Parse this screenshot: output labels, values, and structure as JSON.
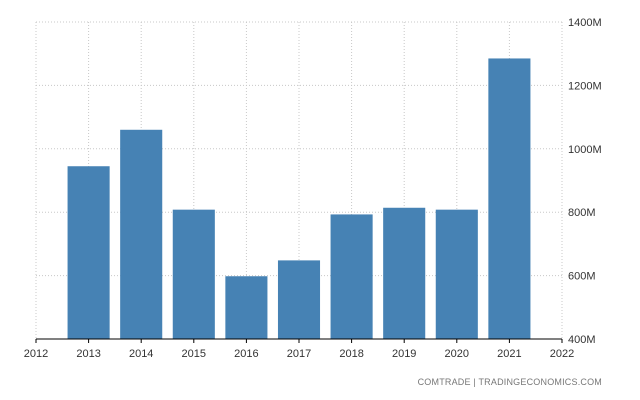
{
  "chart_data": {
    "type": "bar",
    "categories": [
      "2013",
      "2014",
      "2015",
      "2016",
      "2017",
      "2018",
      "2019",
      "2020",
      "2021"
    ],
    "values": [
      945,
      1060,
      808,
      598,
      648,
      793,
      814,
      808,
      1285
    ],
    "x_ticks": [
      "2012",
      "2013",
      "2014",
      "2015",
      "2016",
      "2017",
      "2018",
      "2019",
      "2020",
      "2021",
      "2022"
    ],
    "xlim": [
      2012,
      2022
    ],
    "y_ticks": [
      {
        "value": 400,
        "label": "400M"
      },
      {
        "value": 600,
        "label": "600M"
      },
      {
        "value": 800,
        "label": "800M"
      },
      {
        "value": 1000,
        "label": "1000M"
      },
      {
        "value": 1200,
        "label": "1200M"
      },
      {
        "value": 1400,
        "label": "1400M"
      }
    ],
    "ylim": [
      400,
      1400
    ],
    "y_axis_side": "right",
    "grid": true,
    "bar_color": "#4682b4",
    "title": "",
    "xlabel": "",
    "ylabel": ""
  },
  "source_note": "COMTRADE | TRADINGECONOMICS.COM"
}
